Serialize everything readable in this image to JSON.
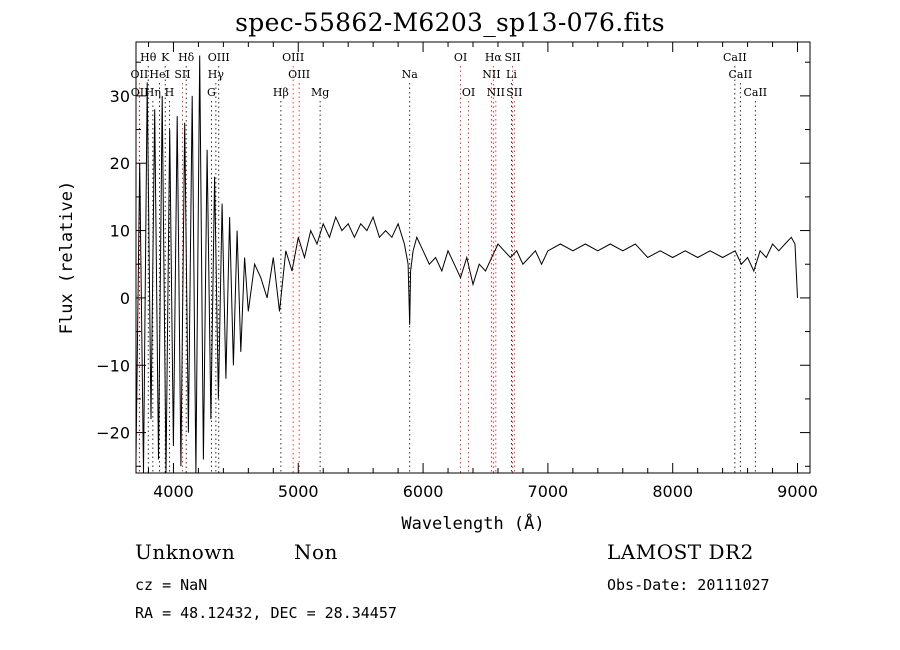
{
  "title": "spec-55862-M6203_sp13-076.fits",
  "footer": {
    "class_label": "Unknown",
    "subclass_label": "Non",
    "survey_label": "LAMOST DR2",
    "cz_line": "cz = NaN",
    "obs_date_line": "Obs-Date: 20111027",
    "coords_line": "RA =  48.12432, DEC =  28.34457"
  },
  "chart_data": {
    "type": "line",
    "xlabel": "Wavelength (Å)",
    "ylabel": "Flux (relative)",
    "xlim": [
      3700,
      9100
    ],
    "ylim": [
      -26,
      38
    ],
    "xticks": [
      4000,
      5000,
      6000,
      7000,
      8000,
      9000
    ],
    "yticks": [
      -20,
      -10,
      0,
      10,
      20,
      30
    ],
    "grid": false,
    "line_markers": [
      {
        "label": "Hθ",
        "wave": 3798,
        "row": 0,
        "color": "#000000"
      },
      {
        "label": "K",
        "wave": 3934,
        "row": 0,
        "color": "#000000"
      },
      {
        "label": "Hδ",
        "wave": 4102,
        "row": 0,
        "color": "#000000"
      },
      {
        "label": "OIII",
        "wave": 4363,
        "row": 0,
        "color": "#000000"
      },
      {
        "label": "OIII",
        "wave": 4959,
        "row": 0,
        "color": "#ff0000"
      },
      {
        "label": "OI",
        "wave": 6300,
        "row": 0,
        "color": "#ff0000"
      },
      {
        "label": "Hα",
        "wave": 6563,
        "row": 0,
        "color": "#ff0000"
      },
      {
        "label": "SII",
        "wave": 6717,
        "row": 0,
        "color": "#ff0000"
      },
      {
        "label": "CaII",
        "wave": 8498,
        "row": 0,
        "color": "#000000"
      },
      {
        "label": "OII",
        "wave": 3727,
        "row": 1,
        "color": "#ff0000"
      },
      {
        "label": "HeI",
        "wave": 3889,
        "row": 1,
        "color": "#000000"
      },
      {
        "label": "SII",
        "wave": 4072,
        "row": 1,
        "color": "#ff0000"
      },
      {
        "label": "Hγ",
        "wave": 4340,
        "row": 1,
        "color": "#000000"
      },
      {
        "label": "OIII",
        "wave": 5007,
        "row": 1,
        "color": "#ff0000"
      },
      {
        "label": "Na",
        "wave": 5893,
        "row": 1,
        "color": "#000000"
      },
      {
        "label": "NII",
        "wave": 6548,
        "row": 1,
        "color": "#ff0000"
      },
      {
        "label": "Li",
        "wave": 6708,
        "row": 1,
        "color": "#000000"
      },
      {
        "label": "CaII",
        "wave": 8542,
        "row": 1,
        "color": "#000000"
      },
      {
        "label": "OII",
        "wave": 3729,
        "row": 2,
        "color": "#ff0000"
      },
      {
        "label": "Hη",
        "wave": 3835,
        "row": 2,
        "color": "#000000"
      },
      {
        "label": "H",
        "wave": 3968,
        "row": 2,
        "color": "#000000"
      },
      {
        "label": "G",
        "wave": 4304,
        "row": 2,
        "color": "#000000"
      },
      {
        "label": "Hβ",
        "wave": 4861,
        "row": 2,
        "color": "#000000"
      },
      {
        "label": "Mg",
        "wave": 5175,
        "row": 2,
        "color": "#000000"
      },
      {
        "label": "OI",
        "wave": 6364,
        "row": 2,
        "color": "#ff0000"
      },
      {
        "label": "NII",
        "wave": 6583,
        "row": 2,
        "color": "#ff0000"
      },
      {
        "label": "SII",
        "wave": 6731,
        "row": 2,
        "color": "#ff0000"
      },
      {
        "label": "CaII",
        "wave": 8662,
        "row": 2,
        "color": "#000000"
      }
    ],
    "series": [
      {
        "x": [
          3700,
          3730,
          3760,
          3790,
          3820,
          3850,
          3880,
          3910,
          3940,
          3970,
          4000,
          4030,
          4060,
          4090,
          4120,
          4150,
          4180,
          4210,
          4240,
          4270,
          4300,
          4330,
          4360,
          4390,
          4420,
          4450,
          4480,
          4510,
          4540,
          4570,
          4600,
          4650,
          4700,
          4750,
          4800,
          4850,
          4900,
          4950,
          5000,
          5050,
          5100,
          5150,
          5200,
          5250,
          5300,
          5350,
          5400,
          5450,
          5500,
          5550,
          5600,
          5650,
          5700,
          5750,
          5800,
          5850,
          5880,
          5893,
          5900,
          5920,
          5950,
          6000,
          6050,
          6100,
          6150,
          6200,
          6250,
          6300,
          6350,
          6400,
          6450,
          6500,
          6550,
          6600,
          6650,
          6700,
          6750,
          6800,
          6850,
          6900,
          6950,
          7000,
          7100,
          7200,
          7300,
          7400,
          7500,
          7600,
          7700,
          7800,
          7900,
          8000,
          8100,
          8200,
          8300,
          8400,
          8500,
          8550,
          8600,
          8650,
          8700,
          8750,
          8800,
          8850,
          8900,
          8950,
          8980,
          9000
        ],
        "y": [
          -24,
          20,
          -26,
          32,
          -18,
          28,
          -24,
          30,
          -26,
          25,
          -22,
          27,
          -25,
          26,
          -20,
          30,
          -26,
          36,
          -24,
          22,
          -18,
          18,
          -15,
          14,
          -12,
          12,
          -10,
          10,
          -8,
          6,
          -2,
          5,
          3,
          0,
          6,
          -2,
          7,
          4,
          9,
          6,
          10,
          8,
          11,
          9,
          12,
          10,
          11,
          9,
          11,
          10,
          12,
          9,
          10,
          9,
          11,
          8,
          5,
          -4,
          4,
          7,
          9,
          7,
          5,
          6,
          4,
          7,
          5,
          3,
          6,
          2,
          5,
          4,
          6,
          8,
          7,
          6,
          7,
          5,
          6,
          7,
          5,
          7,
          8,
          7,
          8,
          7,
          8,
          7,
          8,
          6,
          7,
          6,
          7,
          6,
          7,
          6,
          7,
          5,
          6,
          4,
          7,
          6,
          8,
          7,
          8,
          9,
          8,
          0
        ]
      }
    ]
  }
}
